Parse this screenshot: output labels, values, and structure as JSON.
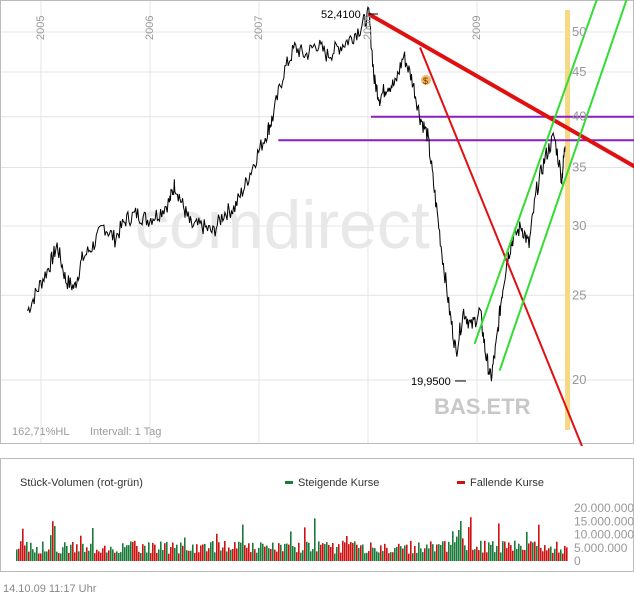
{
  "chart_data": [
    {
      "type": "line",
      "symbol": "BAS.ETR",
      "watermark": "comdirect",
      "x_tick_labels": [
        "2005",
        "2006",
        "2007",
        "2008",
        "2009"
      ],
      "y_ticks": [
        20,
        25,
        30,
        35,
        40,
        45,
        50
      ],
      "ylim": [
        17,
        54
      ],
      "log_scale": true,
      "grid": true,
      "annotations": {
        "high_label": "52,4100",
        "high_value": 52.41,
        "low_label": "19,9500",
        "low_value": 19.95,
        "range_info": "162,71%HL",
        "interval": "Intervall: 1 Tag"
      },
      "horizontal_lines": [
        {
          "value": 40.0,
          "color": "#8a1fc0"
        },
        {
          "value": 37.6,
          "color": "#8a1fc0"
        }
      ],
      "series": [
        {
          "color": "#000000",
          "x": [
            2004.85,
            2004.95,
            2005.05,
            2005.12,
            2005.2,
            2005.28,
            2005.35,
            2005.45,
            2005.55,
            2005.65,
            2005.75,
            2005.85,
            2005.95,
            2006.05,
            2006.15,
            2006.2,
            2006.28,
            2006.35,
            2006.45,
            2006.55,
            2006.65,
            2006.75,
            2006.85,
            2006.95,
            2007.05,
            2007.1,
            2007.2,
            2007.3,
            2007.4,
            2007.5,
            2007.6,
            2007.7,
            2007.8,
            2007.9,
            2007.98,
            2008.03,
            2008.08,
            2008.15,
            2008.22,
            2008.3,
            2008.38,
            2008.45,
            2008.52,
            2008.58,
            2008.65,
            2008.72,
            2008.78,
            2008.85,
            2008.92,
            2009.0,
            2009.05,
            2009.1,
            2009.15,
            2009.2,
            2009.25,
            2009.3,
            2009.38,
            2009.45,
            2009.52,
            2009.6,
            2009.68,
            2009.75,
            2009.78
          ],
          "y": [
            24.0,
            25.5,
            27.0,
            28.5,
            26.0,
            25.5,
            27.5,
            28.5,
            30.0,
            29.0,
            30.5,
            31.0,
            30.5,
            31.0,
            32.0,
            33.5,
            31.5,
            30.0,
            30.0,
            29.5,
            31.0,
            31.5,
            33.5,
            36.0,
            38.5,
            40.0,
            45.0,
            48.0,
            47.0,
            48.5,
            47.0,
            48.0,
            49.0,
            50.5,
            52.4,
            44.0,
            42.0,
            43.5,
            43.5,
            47.0,
            44.0,
            40.0,
            38.0,
            33.0,
            28.0,
            24.0,
            21.5,
            24.0,
            23.0,
            24.0,
            21.5,
            20.0,
            22.0,
            25.0,
            27.5,
            29.0,
            30.0,
            28.5,
            33.0,
            36.0,
            38.0,
            34.0,
            37.0
          ]
        }
      ],
      "trend_lines": [
        {
          "color": "#e01010",
          "from": [
            2007.98,
            52.41
          ],
          "to": [
            2010.7,
            33.5
          ]
        },
        {
          "color": "#e01010",
          "from": [
            2008.45,
            48.0
          ],
          "to": [
            2010.05,
            15.5
          ]
        },
        {
          "color": "#33dd33",
          "from": [
            2008.95,
            22.0
          ],
          "to": [
            2010.15,
            58.0
          ]
        },
        {
          "color": "#33dd33",
          "from": [
            2009.18,
            20.5
          ],
          "to": [
            2010.5,
            62.0
          ]
        }
      ]
    },
    {
      "type": "bar",
      "title": "Stück-Volumen (rot-grün)",
      "legend": [
        {
          "label": "Steigende Kurse",
          "color": "#1a7a3a"
        },
        {
          "label": "Fallende Kurse",
          "color": "#cc1111"
        }
      ],
      "y_tick_labels": [
        "20.000.000",
        "15.000.000",
        "10.000.000",
        "5.000.000",
        "0"
      ],
      "ylim": [
        0,
        20000000
      ]
    }
  ],
  "footer": {
    "timestamp": "14.10.09    11:17 Uhr"
  }
}
